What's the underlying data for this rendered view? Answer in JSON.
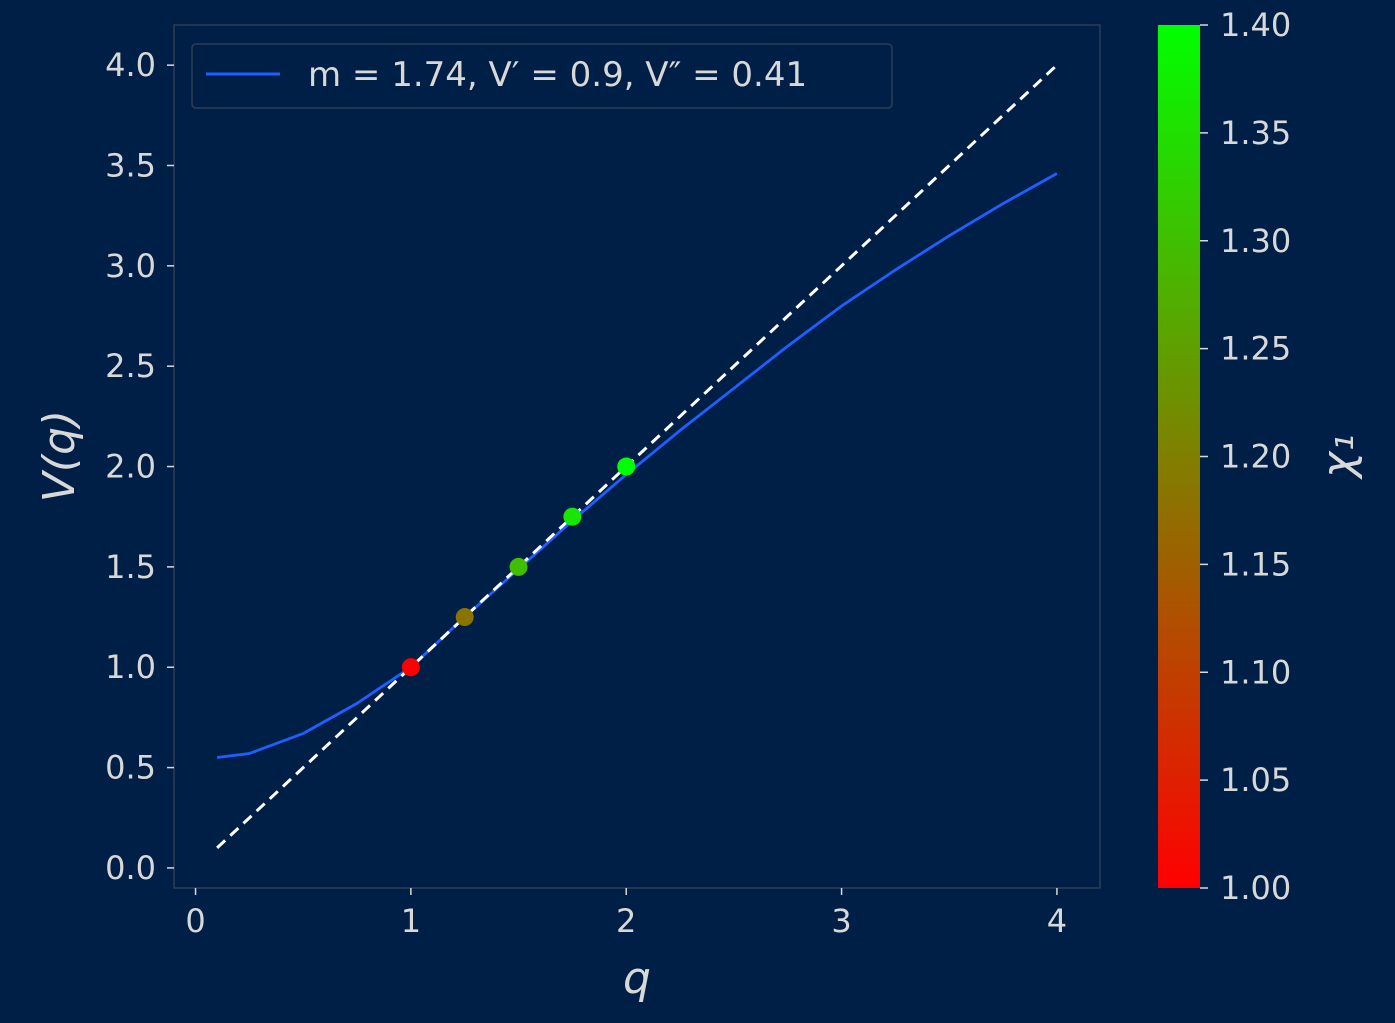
{
  "chart_data": {
    "type": "line",
    "xlabel": "q",
    "ylabel": "V(q)",
    "xlim": [
      -0.1,
      4.2
    ],
    "ylim": [
      -0.1,
      4.2
    ],
    "xticks": [
      0,
      1,
      2,
      3,
      4
    ],
    "xtick_labels": [
      "0",
      "1",
      "2",
      "3",
      "4"
    ],
    "yticks": [
      0.0,
      0.5,
      1.0,
      1.5,
      2.0,
      2.5,
      3.0,
      3.5,
      4.0
    ],
    "ytick_labels": [
      "0.0",
      "0.5",
      "1.0",
      "1.5",
      "2.0",
      "2.5",
      "3.0",
      "3.5",
      "4.0"
    ],
    "grid": false,
    "legend": {
      "placement": "top-left",
      "entries": [
        "m =  1.74, V′ =  0.9, V″ =  0.41"
      ]
    },
    "series": [
      {
        "name": "m =  1.74, V′ =  0.9, V″ =  0.41",
        "style": "solid",
        "color": "#1f5fff",
        "x": [
          0.1,
          0.25,
          0.5,
          0.75,
          1.0,
          1.25,
          1.5,
          1.75,
          2.0,
          2.25,
          2.5,
          2.75,
          3.0,
          3.25,
          3.5,
          3.75,
          4.0
        ],
        "y": [
          0.55,
          0.57,
          0.67,
          0.82,
          1.0,
          1.25,
          1.49,
          1.73,
          1.96,
          2.18,
          2.39,
          2.6,
          2.8,
          2.98,
          3.15,
          3.31,
          3.46
        ]
      },
      {
        "style": "dashed",
        "color": "#ffffff",
        "x": [
          0.1,
          4.0
        ],
        "y": [
          0.1,
          4.0
        ]
      }
    ],
    "points": {
      "x": [
        1.0,
        1.25,
        1.5,
        1.75,
        2.0
      ],
      "y": [
        1.0,
        1.25,
        1.5,
        1.75,
        2.0
      ],
      "chi1": [
        1.0,
        1.18,
        1.3,
        1.36,
        1.4
      ]
    },
    "colorbar": {
      "label": "χ₁",
      "range": [
        1.0,
        1.4
      ],
      "ticks": [
        1.0,
        1.05,
        1.1,
        1.15,
        1.2,
        1.25,
        1.3,
        1.35,
        1.4
      ],
      "tick_labels": [
        "1.00",
        "1.05",
        "1.10",
        "1.15",
        "1.20",
        "1.25",
        "1.30",
        "1.35",
        "1.40"
      ],
      "color_low": "#ff0000",
      "color_high": "#00ff00"
    },
    "colors": {
      "background": "#001f47",
      "text": "#d8d8d8",
      "axes_edge": "#2e3d55"
    }
  }
}
